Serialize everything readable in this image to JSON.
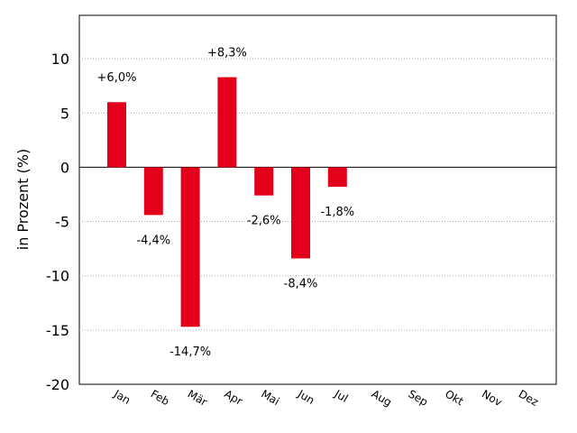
{
  "chart_data": {
    "type": "bar",
    "title": "",
    "xlabel": "",
    "ylabel": "in Prozent (%)",
    "ylim": [
      -20,
      14
    ],
    "yticks": [
      10,
      5,
      0,
      -5,
      -10,
      -15,
      -20
    ],
    "ytick_labels": [
      "10",
      "5",
      "0",
      "-5",
      "-10",
      "-15",
      "-20"
    ],
    "grid": "horizontal-dotted",
    "bar_color": "#e2001a",
    "categories": [
      "Jan",
      "Feb",
      "Mär",
      "Apr",
      "Mai",
      "Jun",
      "Jul",
      "Aug",
      "Sep",
      "Okt",
      "Nov",
      "Dez"
    ],
    "values": [
      6.0,
      -4.4,
      -14.7,
      8.3,
      -2.6,
      -8.4,
      -1.8,
      null,
      null,
      null,
      null,
      null
    ],
    "data_labels": [
      "+6,0%",
      "-4,4%",
      "-14,7%",
      "+8,3%",
      "-2,6%",
      "-8,4%",
      "-1,8%",
      "",
      "",
      "",
      "",
      ""
    ]
  }
}
